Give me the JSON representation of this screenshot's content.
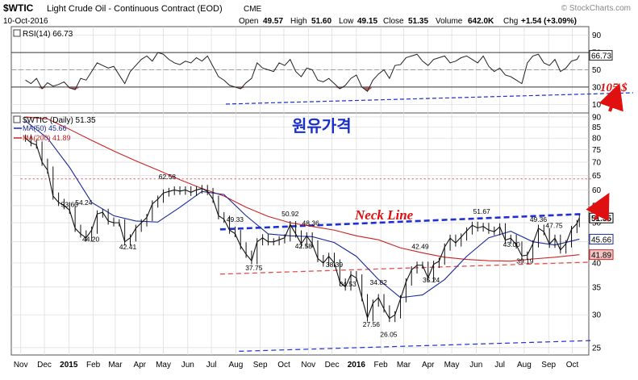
{
  "header": {
    "symbol": "$WTIC",
    "name": "Light Crude Oil - Continuous Contract (EOD)",
    "exchange": "CME",
    "date": "10-Oct-2016",
    "open_label": "Open",
    "open": "49.57",
    "high_label": "High",
    "high": "51.60",
    "low_label": "Low",
    "low": "49.15",
    "close_label": "Close",
    "close": "51.35",
    "volume_label": "Volume",
    "volume": "642.0K",
    "chg_label": "Chg",
    "chg": "+1.54 (+3.09%)",
    "watermark": "© StockCharts.com"
  },
  "legend": {
    "rsi": "RSI(14) 66.73",
    "price": "$WTIC (Daily) 51.35",
    "ma50": "MA(50) 45.66",
    "ma200": "MA(200) 41.89"
  },
  "annotations": {
    "korean": "원유가격",
    "neck_line": "Neck Line",
    "target": "105 $"
  },
  "colors": {
    "ma50": "#1a2a9a",
    "ma200": "#cc2222",
    "trend_blue": "#1f2fd6",
    "trend_red": "#e84d4d",
    "annotation_red": "#e01010",
    "korean_text": "#1a2fcc",
    "rsi_over": "#4da34d",
    "rsi_under": "#9e4a4a",
    "grid": "#d9d9d9"
  },
  "chart_data": [
    {
      "type": "line",
      "panel": "rsi",
      "ylim": [
        0,
        100
      ],
      "yticks": [
        10,
        30,
        50,
        70,
        90
      ],
      "overbought": 70,
      "oversold": 30,
      "last_value": "66.73",
      "series": [
        {
          "name": "RSI(14)",
          "x": [
            "2014-11-07",
            "2014-11-14",
            "2014-11-21",
            "2014-11-28",
            "2014-12-05",
            "2014-12-12",
            "2014-12-19",
            "2014-12-26",
            "2015-01-02",
            "2015-01-09",
            "2015-01-16",
            "2015-01-23",
            "2015-01-30",
            "2015-02-06",
            "2015-02-13",
            "2015-02-20",
            "2015-02-27",
            "2015-03-06",
            "2015-03-13",
            "2015-03-20",
            "2015-03-27",
            "2015-04-03",
            "2015-04-10",
            "2015-04-17",
            "2015-04-24",
            "2015-05-01",
            "2015-05-08",
            "2015-05-15",
            "2015-05-22",
            "2015-05-29",
            "2015-06-05",
            "2015-06-12",
            "2015-06-19",
            "2015-06-26",
            "2015-07-03",
            "2015-07-10",
            "2015-07-17",
            "2015-07-24",
            "2015-07-31",
            "2015-08-07",
            "2015-08-14",
            "2015-08-21",
            "2015-08-28",
            "2015-09-04",
            "2015-09-11",
            "2015-09-18",
            "2015-09-25",
            "2015-10-02",
            "2015-10-09",
            "2015-10-16",
            "2015-10-23",
            "2015-10-30",
            "2015-11-06",
            "2015-11-13",
            "2015-11-20",
            "2015-11-27",
            "2015-12-04",
            "2015-12-11",
            "2015-12-18",
            "2015-12-25",
            "2016-01-01",
            "2016-01-08",
            "2016-01-15",
            "2016-01-22",
            "2016-01-29",
            "2016-02-05",
            "2016-02-12",
            "2016-02-19",
            "2016-02-26",
            "2016-03-04",
            "2016-03-11",
            "2016-03-18",
            "2016-03-25",
            "2016-04-01",
            "2016-04-08",
            "2016-04-15",
            "2016-04-22",
            "2016-04-29",
            "2016-05-06",
            "2016-05-13",
            "2016-05-20",
            "2016-05-27",
            "2016-06-03",
            "2016-06-10",
            "2016-06-17",
            "2016-06-24",
            "2016-07-01",
            "2016-07-08",
            "2016-07-15",
            "2016-07-22",
            "2016-07-29",
            "2016-08-05",
            "2016-08-12",
            "2016-08-19",
            "2016-08-26",
            "2016-09-02",
            "2016-09-09",
            "2016-09-16",
            "2016-09-23",
            "2016-09-30",
            "2016-10-07",
            "2016-10-10"
          ],
          "values": [
            38,
            34,
            40,
            28,
            35,
            31,
            33,
            36,
            29,
            27,
            40,
            38,
            48,
            58,
            55,
            52,
            54,
            44,
            34,
            48,
            55,
            62,
            66,
            60,
            70,
            68,
            62,
            58,
            56,
            60,
            58,
            64,
            60,
            66,
            54,
            42,
            38,
            32,
            30,
            28,
            35,
            40,
            58,
            52,
            50,
            48,
            58,
            55,
            62,
            48,
            42,
            52,
            50,
            38,
            36,
            40,
            34,
            28,
            32,
            40,
            44,
            30,
            25,
            38,
            45,
            50,
            40,
            55,
            56,
            64,
            66,
            68,
            60,
            55,
            62,
            64,
            66,
            58,
            60,
            64,
            66,
            62,
            58,
            66,
            54,
            48,
            52,
            44,
            42,
            38,
            34,
            58,
            66,
            68,
            58,
            55,
            62,
            48,
            52,
            60,
            62,
            66.73
          ]
        }
      ]
    },
    {
      "type": "line",
      "panel": "price",
      "title": "$WTIC (Daily)",
      "ylim": [
        24,
        92
      ],
      "log_scale": true,
      "yticks": [
        25,
        30,
        35,
        40,
        45,
        50,
        55,
        60,
        65,
        70,
        75,
        80,
        85,
        90
      ],
      "x_tick_labels": [
        "Nov",
        "Dec",
        "2015",
        "Feb",
        "Mar",
        "Apr",
        "May",
        "Jun",
        "Jul",
        "Aug",
        "Sep",
        "Oct",
        "Nov",
        "Dec",
        "2016",
        "Feb",
        "Mar",
        "Apr",
        "May",
        "Jun",
        "Jul",
        "Aug",
        "Sep",
        "Oct"
      ],
      "x_tick_dates": [
        "2014-11-01",
        "2014-12-01",
        "2015-01-01",
        "2015-02-01",
        "2015-03-01",
        "2015-04-01",
        "2015-05-01",
        "2015-06-01",
        "2015-07-01",
        "2015-08-01",
        "2015-09-01",
        "2015-10-01",
        "2015-11-01",
        "2015-12-01",
        "2016-01-01",
        "2016-02-01",
        "2016-03-01",
        "2016-04-01",
        "2016-05-01",
        "2016-06-01",
        "2016-07-01",
        "2016-08-01",
        "2016-09-01",
        "2016-10-01"
      ],
      "series": [
        {
          "name": "$WTIC",
          "style": "candlestick closes",
          "x": [
            "2014-11-07",
            "2014-11-14",
            "2014-11-21",
            "2014-11-28",
            "2014-12-05",
            "2014-12-12",
            "2014-12-19",
            "2014-12-26",
            "2015-01-02",
            "2015-01-09",
            "2015-01-16",
            "2015-01-23",
            "2015-01-30",
            "2015-02-06",
            "2015-02-13",
            "2015-02-20",
            "2015-02-27",
            "2015-03-06",
            "2015-03-13",
            "2015-03-20",
            "2015-03-27",
            "2015-04-03",
            "2015-04-10",
            "2015-04-17",
            "2015-04-24",
            "2015-05-01",
            "2015-05-08",
            "2015-05-15",
            "2015-05-22",
            "2015-05-29",
            "2015-06-05",
            "2015-06-12",
            "2015-06-19",
            "2015-06-26",
            "2015-07-03",
            "2015-07-10",
            "2015-07-17",
            "2015-07-24",
            "2015-07-31",
            "2015-08-07",
            "2015-08-14",
            "2015-08-21",
            "2015-08-28",
            "2015-09-04",
            "2015-09-11",
            "2015-09-18",
            "2015-09-25",
            "2015-10-02",
            "2015-10-09",
            "2015-10-16",
            "2015-10-23",
            "2015-10-30",
            "2015-11-06",
            "2015-11-13",
            "2015-11-20",
            "2015-11-27",
            "2015-12-04",
            "2015-12-11",
            "2015-12-18",
            "2015-12-25",
            "2016-01-01",
            "2016-01-08",
            "2016-01-15",
            "2016-01-22",
            "2016-01-29",
            "2016-02-05",
            "2016-02-12",
            "2016-02-19",
            "2016-02-26",
            "2016-03-04",
            "2016-03-11",
            "2016-03-18",
            "2016-03-25",
            "2016-04-01",
            "2016-04-08",
            "2016-04-15",
            "2016-04-22",
            "2016-04-29",
            "2016-05-06",
            "2016-05-13",
            "2016-05-20",
            "2016-05-27",
            "2016-06-03",
            "2016-06-10",
            "2016-06-17",
            "2016-06-24",
            "2016-07-01",
            "2016-07-08",
            "2016-07-15",
            "2016-07-22",
            "2016-07-29",
            "2016-08-05",
            "2016-08-12",
            "2016-08-19",
            "2016-08-26",
            "2016-09-02",
            "2016-09-09",
            "2016-09-16",
            "2016-09-23",
            "2016-09-30",
            "2016-10-07",
            "2016-10-10"
          ],
          "values": [
            80,
            78,
            77,
            70,
            67,
            58,
            56,
            55,
            53.6,
            48.5,
            47,
            46,
            48,
            52.5,
            53,
            50.5,
            50,
            50,
            45,
            46,
            48.5,
            50,
            51.5,
            55.5,
            57,
            59,
            59.5,
            60,
            59.6,
            60,
            59.2,
            60,
            60.5,
            59.5,
            57,
            52,
            51,
            48,
            47.1,
            44,
            42,
            40.5,
            45,
            46,
            45,
            45,
            45.5,
            46,
            49.5,
            47,
            44.5,
            46.5,
            44.5,
            41,
            40,
            41.5,
            40,
            36,
            35,
            37.5,
            36.8,
            33,
            29.5,
            32,
            33,
            31,
            29.4,
            30,
            32.8,
            36,
            38.5,
            39.5,
            39.5,
            36.8,
            39.7,
            40.4,
            43.7,
            45.9,
            44.7,
            46.2,
            47.8,
            49.3,
            48.6,
            49,
            48,
            47.6,
            48.9,
            45.4,
            45.9,
            44.2,
            41.6,
            41.8,
            44.5,
            48.5,
            47.6,
            44.4,
            45.9,
            43,
            44.5,
            48.2,
            49.8,
            51.35
          ]
        },
        {
          "name": "MA(50)",
          "x": [
            "2014-11-07",
            "2014-12-05",
            "2015-01-02",
            "2015-01-30",
            "2015-02-27",
            "2015-03-27",
            "2015-04-24",
            "2015-05-22",
            "2015-06-19",
            "2015-07-17",
            "2015-08-14",
            "2015-09-11",
            "2015-10-09",
            "2015-11-06",
            "2015-12-04",
            "2016-01-01",
            "2016-01-29",
            "2016-02-26",
            "2016-03-25",
            "2016-04-22",
            "2016-05-20",
            "2016-06-17",
            "2016-07-15",
            "2016-08-12",
            "2016-09-09",
            "2016-10-10"
          ],
          "values": [
            88,
            80,
            68,
            56,
            52,
            50.5,
            50.2,
            54.5,
            59.5,
            58.5,
            52,
            47,
            46.5,
            46.3,
            44.8,
            41.5,
            36.5,
            33,
            33.5,
            36.5,
            41.5,
            46,
            47.7,
            45,
            44.2,
            45.66
          ]
        },
        {
          "name": "MA(200)",
          "x": [
            "2014-11-07",
            "2014-12-05",
            "2015-01-02",
            "2015-01-30",
            "2015-02-27",
            "2015-03-27",
            "2015-04-24",
            "2015-05-22",
            "2015-06-19",
            "2015-07-17",
            "2015-08-14",
            "2015-09-11",
            "2015-10-09",
            "2015-11-06",
            "2015-12-04",
            "2016-01-01",
            "2016-01-29",
            "2016-02-26",
            "2016-03-25",
            "2016-04-22",
            "2016-05-20",
            "2016-06-17",
            "2016-07-15",
            "2016-08-12",
            "2016-09-09",
            "2016-10-10"
          ],
          "values": [
            90,
            89,
            84,
            79,
            74.5,
            70.5,
            67,
            63.5,
            60.5,
            58,
            54.5,
            51.8,
            50,
            49,
            48,
            46.5,
            45.5,
            43.5,
            42.3,
            41.3,
            40.8,
            40.5,
            40.4,
            40.9,
            41.3,
            41.89
          ]
        }
      ],
      "data_labels": [
        {
          "x": "2015-01-02",
          "y": 53.6,
          "text": "53.60"
        },
        {
          "x": "2015-01-20",
          "y": 54.24,
          "text": "54.24"
        },
        {
          "x": "2015-01-29",
          "y": 44.2,
          "text": "44.20"
        },
        {
          "x": "2015-03-17",
          "y": 42.41,
          "text": "42.41"
        },
        {
          "x": "2015-05-06",
          "y": 62.58,
          "text": "62.58"
        },
        {
          "x": "2015-07-31",
          "y": 49.33,
          "text": "49.33"
        },
        {
          "x": "2015-08-24",
          "y": 37.75,
          "text": "37.75"
        },
        {
          "x": "2015-10-09",
          "y": 50.92,
          "text": "50.92"
        },
        {
          "x": "2015-11-04",
          "y": 48.36,
          "text": "48.36"
        },
        {
          "x": "2015-10-26",
          "y": 42.58,
          "text": "42.58"
        },
        {
          "x": "2015-12-04",
          "y": 38.39,
          "text": "38.39"
        },
        {
          "x": "2015-12-21",
          "y": 34.53,
          "text": "34.53"
        },
        {
          "x": "2016-01-20",
          "y": 27.56,
          "text": "27.56"
        },
        {
          "x": "2016-01-29",
          "y": 34.82,
          "text": "34.82"
        },
        {
          "x": "2016-02-11",
          "y": 26.05,
          "text": "26.05"
        },
        {
          "x": "2016-03-22",
          "y": 42.49,
          "text": "42.49"
        },
        {
          "x": "2016-04-05",
          "y": 35.24,
          "text": "35.24"
        },
        {
          "x": "2016-06-08",
          "y": 51.67,
          "text": "51.67"
        },
        {
          "x": "2016-07-16",
          "y": 43.0,
          "text": "43.00"
        },
        {
          "x": "2016-08-02",
          "y": 39.19,
          "text": "39.19"
        },
        {
          "x": "2016-08-19",
          "y": 49.36,
          "text": "49.36"
        },
        {
          "x": "2016-09-08",
          "y": 47.75,
          "text": "47.75"
        }
      ],
      "axis_tags": [
        {
          "text": "51.35",
          "y": 51.35,
          "kind": "price"
        },
        {
          "text": "45.66",
          "y": 45.66,
          "kind": "ma50"
        },
        {
          "text": "41.89",
          "y": 41.89,
          "kind": "ma200"
        }
      ],
      "trend_lines": [
        {
          "name": "neck-line",
          "style": "dashed-blue-bold",
          "from": {
            "x": "2015-07-12",
            "y": 48.2
          },
          "to": {
            "x": "2016-10-15",
            "y": 52.5
          }
        },
        {
          "name": "red-support-line",
          "style": "dashed-red",
          "from": {
            "x": "2015-07-12",
            "y": 37.6
          },
          "to": {
            "x": "2016-10-25",
            "y": 40.2
          }
        },
        {
          "name": "lower-blue-line",
          "style": "dashed-blue",
          "from": {
            "x": "2015-08-05",
            "y": 24.5
          },
          "to": {
            "x": "2016-10-25",
            "y": 26.0
          }
        },
        {
          "name": "top-red-dotted",
          "style": "dotted-red",
          "from": {
            "x": "2014-11-01",
            "y": 63.8
          },
          "to": {
            "x": "2016-10-25",
            "y": 63.8
          }
        }
      ]
    }
  ]
}
